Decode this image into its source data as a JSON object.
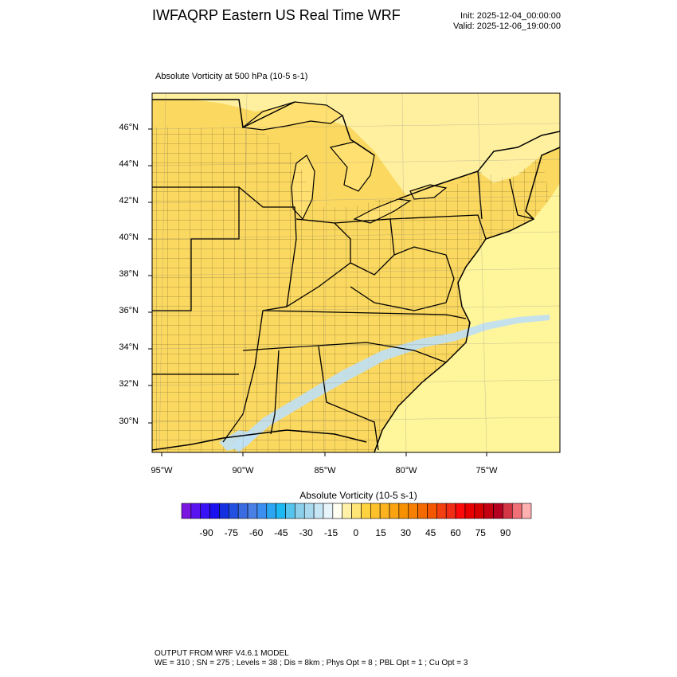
{
  "header": {
    "title": "IWFAQRP Eastern US Real Time WRF",
    "init": "Init: 2025-12-04_00:00:00",
    "valid": "Valid: 2025-12-06_19:00:00"
  },
  "plot": {
    "subtitle": "Absolute Vorticity at 500 hPa   (10-5 s-1)",
    "lat_labels": [
      "46°N",
      "44°N",
      "42°N",
      "40°N",
      "38°N",
      "36°N",
      "34°N",
      "32°N",
      "30°N"
    ],
    "lon_labels": [
      "95°W",
      "90°W",
      "85°W",
      "80°W",
      "75°W"
    ],
    "colors": {
      "background_field": "#ffe880",
      "land_field": "#fbd860",
      "ocean_field": "#fff59a",
      "negative_band": "#bfe0f5",
      "border": "#000000"
    }
  },
  "colorbar": {
    "title": "Absolute Vorticity  (10-5 s-1)",
    "labels": [
      "-90",
      "-75",
      "-60",
      "-45",
      "-30",
      "-15",
      "0",
      "15",
      "30",
      "45",
      "60",
      "75",
      "90"
    ],
    "colors": [
      "#7a16e0",
      "#5a14f0",
      "#3a12f8",
      "#1a10f0",
      "#1430e0",
      "#2350e0",
      "#3a6be0",
      "#4a7fe6",
      "#3b8ff0",
      "#2aa6f2",
      "#1bb8f2",
      "#54c3ee",
      "#8ccfeb",
      "#a9d9ef",
      "#c7e6f5",
      "#e8f4fb",
      "#fffff2",
      "#fff2a8",
      "#ffe476",
      "#ffd23f",
      "#fdc12c",
      "#fdb21f",
      "#fca312",
      "#f89100",
      "#f87f00",
      "#f46a00",
      "#f55600",
      "#f43f10",
      "#f22d15",
      "#ff0a0a",
      "#e80000",
      "#d60000",
      "#c50010",
      "#b50020",
      "#d53646",
      "#ef7077",
      "#ffb0b0"
    ]
  },
  "footer": {
    "line1": "OUTPUT FROM WRF V4.6.1 MODEL",
    "line2": "WE = 310 ; SN = 275 ; Levels = 38 ; Dis = 8km ; Phys Opt = 8 ; PBL Opt = 1 ; Cu Opt = 3"
  }
}
